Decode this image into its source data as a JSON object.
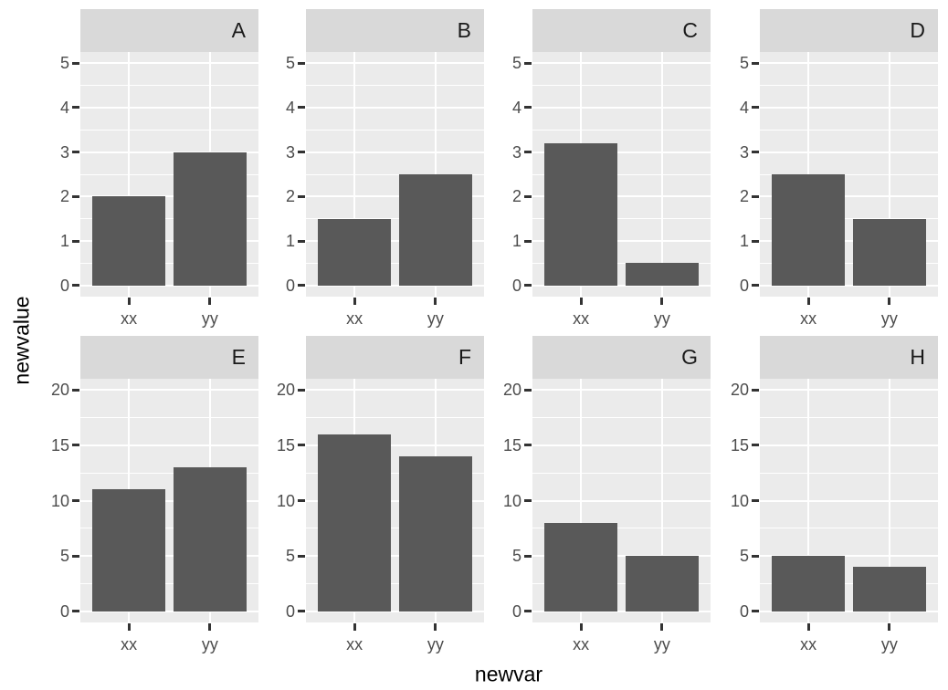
{
  "chart_data": {
    "type": "bar",
    "title": "",
    "xlabel": "newvar",
    "ylabel": "newvalue",
    "categories": [
      "xx",
      "yy"
    ],
    "ncol": 4,
    "legend": "none",
    "grid": true,
    "facets": [
      {
        "label": "A",
        "values": [
          2,
          3
        ]
      },
      {
        "label": "B",
        "values": [
          1.5,
          2.5
        ]
      },
      {
        "label": "C",
        "values": [
          3.2,
          0.5
        ]
      },
      {
        "label": "D",
        "values": [
          2.5,
          1.5
        ]
      },
      {
        "label": "E",
        "values": [
          11,
          13
        ]
      },
      {
        "label": "F",
        "values": [
          16,
          14
        ]
      },
      {
        "label": "G",
        "values": [
          8,
          5
        ]
      },
      {
        "label": "H",
        "values": [
          5,
          4
        ]
      }
    ],
    "facet_rows": [
      {
        "ylim": [
          0,
          5
        ],
        "ticks": [
          0,
          1,
          2,
          3,
          4,
          5
        ],
        "minor_ticks": [
          0.5,
          1.5,
          2.5,
          3.5,
          4.5
        ]
      },
      {
        "ylim": [
          0,
          20
        ],
        "ticks": [
          0,
          5,
          10,
          15,
          20
        ],
        "minor_ticks": [
          2.5,
          7.5,
          12.5,
          17.5
        ]
      }
    ]
  },
  "style": {
    "background": "#FFFFFF",
    "panel_bg": "#EBEBEB",
    "strip_bg": "#D9D9D9",
    "grid_color": "#FFFFFF",
    "bar_color": "#595959",
    "tick_mark_color": "#333333",
    "tick_text_color": "#4D4D4D",
    "strip_text_color": "#1A1A1A",
    "axis_title_color": "#000000"
  }
}
